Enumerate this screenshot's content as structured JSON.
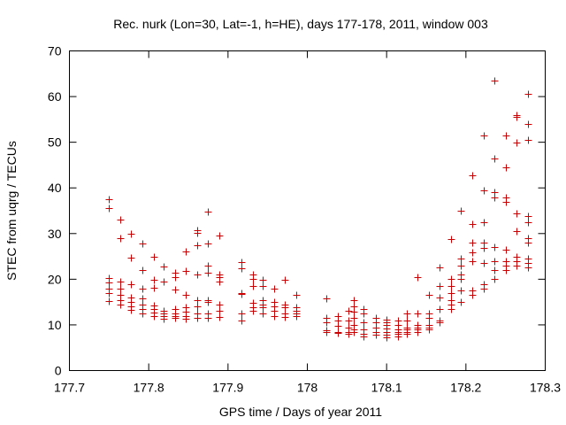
{
  "chart_data": {
    "type": "scatter",
    "title": "Rec. nurk (Lon=30, Lat=-1, h=HE), days 177-178, 2011, window 003",
    "xlabel": "GPS time / Days of year 2011",
    "ylabel": "STEC from uqrg / TECUs",
    "xlim": [
      177.7,
      178.3
    ],
    "ylim": [
      0,
      70
    ],
    "xticks": [
      177.7,
      177.8,
      177.9,
      178.0,
      178.1,
      178.2,
      178.3
    ],
    "xtick_labels": [
      "177.7",
      "177.8",
      "177.9",
      "178",
      "178.1",
      "178.2",
      "178.3"
    ],
    "yticks": [
      0,
      10,
      20,
      30,
      40,
      50,
      60,
      70
    ],
    "ytick_labels": [
      "0",
      "10",
      "20",
      "30",
      "40",
      "50",
      "60",
      "70"
    ],
    "marker": "+",
    "marker_color": "#cc0000",
    "grid": false,
    "series": [
      {
        "name": "STEC",
        "points": [
          [
            177.75,
            37.5
          ],
          [
            177.75,
            35.5
          ],
          [
            177.75,
            20.3
          ],
          [
            177.75,
            19.2
          ],
          [
            177.75,
            18.0
          ],
          [
            177.75,
            17.0
          ],
          [
            177.75,
            15.3
          ],
          [
            177.764,
            33.0
          ],
          [
            177.764,
            29.0
          ],
          [
            177.764,
            19.5
          ],
          [
            177.764,
            18.0
          ],
          [
            177.764,
            16.5
          ],
          [
            177.764,
            15.5
          ],
          [
            177.764,
            14.5
          ],
          [
            177.778,
            30.0
          ],
          [
            177.778,
            24.8
          ],
          [
            177.778,
            18.9
          ],
          [
            177.778,
            16.0
          ],
          [
            177.778,
            15.0
          ],
          [
            177.778,
            14.0
          ],
          [
            177.778,
            13.3
          ],
          [
            177.792,
            27.8
          ],
          [
            177.792,
            22.0
          ],
          [
            177.792,
            18.0
          ],
          [
            177.792,
            15.8
          ],
          [
            177.792,
            14.5
          ],
          [
            177.792,
            13.5
          ],
          [
            177.792,
            12.5
          ],
          [
            177.806,
            25.0
          ],
          [
            177.806,
            19.8
          ],
          [
            177.806,
            18.2
          ],
          [
            177.806,
            14.2
          ],
          [
            177.806,
            13.5
          ],
          [
            177.806,
            12.7
          ],
          [
            177.806,
            12.0
          ],
          [
            177.819,
            22.8
          ],
          [
            177.819,
            19.5
          ],
          [
            177.819,
            13.0
          ],
          [
            177.819,
            12.5
          ],
          [
            177.819,
            12.0
          ],
          [
            177.819,
            11.4
          ],
          [
            177.833,
            21.5
          ],
          [
            177.833,
            20.5
          ],
          [
            177.833,
            17.8
          ],
          [
            177.833,
            13.5
          ],
          [
            177.833,
            12.5
          ],
          [
            177.833,
            12.0
          ],
          [
            177.833,
            11.5
          ],
          [
            177.847,
            26.0
          ],
          [
            177.847,
            21.8
          ],
          [
            177.847,
            16.5
          ],
          [
            177.847,
            13.8
          ],
          [
            177.847,
            12.8
          ],
          [
            177.847,
            12.0
          ],
          [
            177.847,
            11.3
          ],
          [
            177.861,
            30.8
          ],
          [
            177.861,
            30.2
          ],
          [
            177.861,
            27.5
          ],
          [
            177.861,
            21.0
          ],
          [
            177.861,
            15.5
          ],
          [
            177.861,
            14.0
          ],
          [
            177.861,
            12.5
          ],
          [
            177.861,
            11.5
          ],
          [
            177.875,
            34.8
          ],
          [
            177.875,
            27.8
          ],
          [
            177.875,
            23.0
          ],
          [
            177.875,
            21.5
          ],
          [
            177.875,
            15.5
          ],
          [
            177.875,
            15.0
          ],
          [
            177.875,
            12.5
          ],
          [
            177.875,
            11.5
          ],
          [
            177.889,
            29.5
          ],
          [
            177.889,
            21.0
          ],
          [
            177.889,
            20.5
          ],
          [
            177.889,
            19.5
          ],
          [
            177.889,
            14.5
          ],
          [
            177.889,
            13.0
          ],
          [
            177.889,
            11.8
          ],
          [
            177.917,
            23.8
          ],
          [
            177.917,
            22.3
          ],
          [
            177.917,
            17.0
          ],
          [
            177.917,
            16.8
          ],
          [
            177.917,
            12.5
          ],
          [
            177.917,
            11.0
          ],
          [
            177.931,
            21.0
          ],
          [
            177.931,
            20.0
          ],
          [
            177.931,
            18.5
          ],
          [
            177.931,
            14.8
          ],
          [
            177.931,
            13.8
          ],
          [
            177.931,
            13.0
          ],
          [
            177.944,
            19.8
          ],
          [
            177.944,
            18.5
          ],
          [
            177.944,
            15.5
          ],
          [
            177.944,
            14.5
          ],
          [
            177.944,
            13.8
          ],
          [
            177.944,
            12.5
          ],
          [
            177.958,
            18.0
          ],
          [
            177.958,
            15.0
          ],
          [
            177.958,
            14.0
          ],
          [
            177.958,
            13.0
          ],
          [
            177.958,
            12.0
          ],
          [
            177.972,
            19.8
          ],
          [
            177.972,
            14.5
          ],
          [
            177.972,
            13.8
          ],
          [
            177.972,
            12.5
          ],
          [
            177.972,
            11.8
          ],
          [
            177.986,
            16.5
          ],
          [
            177.986,
            13.8
          ],
          [
            177.986,
            13.0
          ],
          [
            177.986,
            12.5
          ],
          [
            177.986,
            12.0
          ],
          [
            178.024,
            15.8
          ],
          [
            178.024,
            11.5
          ],
          [
            178.024,
            10.5
          ],
          [
            178.024,
            8.8
          ],
          [
            178.024,
            8.5
          ],
          [
            178.038,
            12.0
          ],
          [
            178.038,
            11.0
          ],
          [
            178.038,
            9.8
          ],
          [
            178.038,
            8.5
          ],
          [
            178.038,
            8.2
          ],
          [
            178.052,
            13.0
          ],
          [
            178.052,
            11.0
          ],
          [
            178.052,
            9.5
          ],
          [
            178.052,
            8.5
          ],
          [
            178.052,
            8.0
          ],
          [
            178.058,
            15.5
          ],
          [
            178.058,
            14.0
          ],
          [
            178.058,
            12.8
          ],
          [
            178.058,
            11.5
          ],
          [
            178.058,
            10.0
          ],
          [
            178.058,
            9.0
          ],
          [
            178.058,
            8.5
          ],
          [
            178.071,
            13.5
          ],
          [
            178.071,
            12.5
          ],
          [
            178.071,
            10.5
          ],
          [
            178.071,
            9.0
          ],
          [
            178.071,
            8.0
          ],
          [
            178.071,
            7.5
          ],
          [
            178.086,
            11.5
          ],
          [
            178.086,
            10.5
          ],
          [
            178.086,
            9.5
          ],
          [
            178.086,
            8.5
          ],
          [
            178.086,
            7.8
          ],
          [
            178.1,
            11.2
          ],
          [
            178.1,
            10.5
          ],
          [
            178.1,
            10.0
          ],
          [
            178.1,
            9.3
          ],
          [
            178.1,
            8.5
          ],
          [
            178.1,
            7.8
          ],
          [
            178.1,
            7.3
          ],
          [
            178.114,
            11.0
          ],
          [
            178.114,
            10.0
          ],
          [
            178.114,
            9.0
          ],
          [
            178.114,
            8.5
          ],
          [
            178.114,
            8.0
          ],
          [
            178.114,
            7.5
          ],
          [
            178.125,
            12.5
          ],
          [
            178.125,
            11.0
          ],
          [
            178.125,
            9.5
          ],
          [
            178.125,
            9.0
          ],
          [
            178.125,
            8.5
          ],
          [
            178.125,
            8.0
          ],
          [
            178.139,
            20.5
          ],
          [
            178.139,
            12.5
          ],
          [
            178.139,
            10.0
          ],
          [
            178.139,
            9.5
          ],
          [
            178.139,
            9.0
          ],
          [
            178.139,
            8.5
          ],
          [
            178.153,
            16.5
          ],
          [
            178.153,
            12.5
          ],
          [
            178.153,
            11.5
          ],
          [
            178.153,
            10.0
          ],
          [
            178.153,
            9.5
          ],
          [
            178.153,
            9.0
          ],
          [
            178.167,
            22.5
          ],
          [
            178.167,
            18.5
          ],
          [
            178.167,
            16.0
          ],
          [
            178.167,
            13.5
          ],
          [
            178.167,
            11.0
          ],
          [
            178.167,
            10.5
          ],
          [
            178.181,
            28.8
          ],
          [
            178.181,
            20.0
          ],
          [
            178.181,
            18.5
          ],
          [
            178.181,
            17.0
          ],
          [
            178.181,
            15.5
          ],
          [
            178.181,
            14.5
          ],
          [
            178.181,
            13.5
          ],
          [
            178.194,
            35.0
          ],
          [
            178.194,
            24.5
          ],
          [
            178.194,
            23.0
          ],
          [
            178.194,
            21.0
          ],
          [
            178.194,
            20.0
          ],
          [
            178.194,
            17.5
          ],
          [
            178.194,
            15.0
          ],
          [
            178.208,
            42.8
          ],
          [
            178.208,
            32.0
          ],
          [
            178.208,
            28.0
          ],
          [
            178.208,
            25.8
          ],
          [
            178.208,
            24.0
          ],
          [
            178.208,
            17.5
          ],
          [
            178.208,
            16.5
          ],
          [
            178.222,
            51.5
          ],
          [
            178.222,
            39.5
          ],
          [
            178.222,
            32.5
          ],
          [
            178.222,
            28.0
          ],
          [
            178.222,
            26.8
          ],
          [
            178.222,
            23.5
          ],
          [
            178.222,
            19.0
          ],
          [
            178.222,
            18.0
          ],
          [
            178.236,
            63.5
          ],
          [
            178.236,
            46.5
          ],
          [
            178.236,
            39.0
          ],
          [
            178.236,
            38.0
          ],
          [
            178.236,
            27.0
          ],
          [
            178.236,
            24.0
          ],
          [
            178.236,
            22.0
          ],
          [
            178.236,
            20.0
          ],
          [
            178.25,
            51.5
          ],
          [
            178.25,
            44.5
          ],
          [
            178.25,
            38.0
          ],
          [
            178.25,
            37.0
          ],
          [
            178.25,
            26.5
          ],
          [
            178.25,
            24.0
          ],
          [
            178.25,
            23.0
          ],
          [
            178.25,
            22.0
          ],
          [
            178.264,
            56.0
          ],
          [
            178.264,
            55.5
          ],
          [
            178.264,
            50.0
          ],
          [
            178.264,
            34.5
          ],
          [
            178.264,
            30.5
          ],
          [
            178.264,
            25.0
          ],
          [
            178.264,
            24.0
          ],
          [
            178.264,
            23.0
          ],
          [
            178.278,
            60.5
          ],
          [
            178.278,
            54.0
          ],
          [
            178.278,
            50.5
          ],
          [
            178.278,
            33.8
          ],
          [
            178.278,
            32.5
          ],
          [
            178.278,
            29.0
          ],
          [
            178.278,
            28.0
          ],
          [
            178.278,
            24.5
          ],
          [
            178.278,
            23.5
          ],
          [
            178.278,
            22.5
          ]
        ]
      }
    ]
  }
}
